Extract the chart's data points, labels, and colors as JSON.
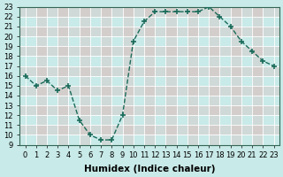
{
  "x": [
    0,
    1,
    2,
    3,
    4,
    5,
    6,
    7,
    8,
    9,
    10,
    11,
    12,
    13,
    14,
    15,
    16,
    17,
    18,
    19,
    20,
    21,
    22,
    23
  ],
  "y": [
    16,
    15,
    15.5,
    14.5,
    15,
    11.5,
    10,
    9.5,
    9.5,
    12,
    19.5,
    21.5,
    22.5,
    22.5,
    22.5,
    22.5,
    22.5,
    23,
    22,
    21,
    19.5,
    18.5,
    17.5,
    17
  ],
  "line_color": "#1a6b5a",
  "marker": "+",
  "marker_size": 5,
  "marker_lw": 1.2,
  "bg_color": "#c8eae8",
  "grid_major_color": "#ffffff",
  "grid_minor_color": "#e8c8c8",
  "xlabel": "Humidex (Indice chaleur)",
  "ylim": [
    9,
    23
  ],
  "xlim": [
    -0.5,
    23.5
  ],
  "yticks": [
    9,
    10,
    11,
    12,
    13,
    14,
    15,
    16,
    17,
    18,
    19,
    20,
    21,
    22,
    23
  ],
  "xticks": [
    0,
    1,
    2,
    3,
    4,
    5,
    6,
    7,
    8,
    9,
    10,
    11,
    12,
    13,
    14,
    15,
    16,
    17,
    18,
    19,
    20,
    21,
    22,
    23
  ],
  "tick_fontsize": 6,
  "xlabel_fontsize": 7.5,
  "line_width": 1.0
}
